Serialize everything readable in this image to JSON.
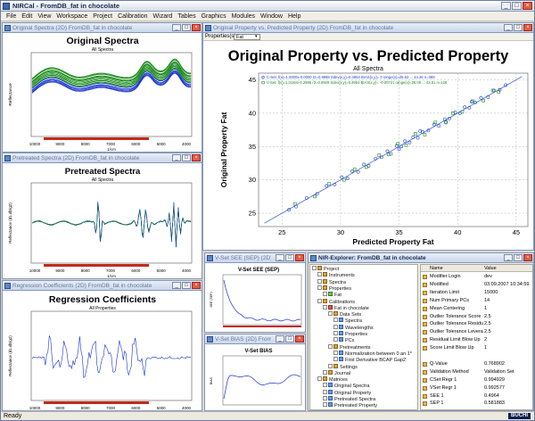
{
  "app": {
    "title": "NIRCal - FromDB_fat in chocolate",
    "status": "Ready",
    "brand": "BÜCHI"
  },
  "window_buttons": {
    "minimize": "_",
    "maximize": "□",
    "close": "×"
  },
  "menu": [
    "File",
    "Edit",
    "View",
    "Workspace",
    "Project",
    "Calibration",
    "Wizard",
    "Tables",
    "Graphics",
    "Modules",
    "Window",
    "Help"
  ],
  "windows": {
    "orig_spectra": {
      "title": "Original Spectra (2D) FromDB_fat in chocolate",
      "chart_title": "Original Spectra",
      "subtitle": "All Spectra",
      "ylabel": "Reflectance",
      "xlabel": "1/cm"
    },
    "pretreated": {
      "title": "Pretreated Spectra (2D) FromDB_fat in chocolate",
      "chart_title": "Pretreated Spectra",
      "subtitle": "All Spectra",
      "ylabel": "Reflectance (d1.db/g2)",
      "xlabel": "1/cm"
    },
    "regression": {
      "title": "Regression Coefficients (2D) FromDB_fat in chocolate",
      "chart_title": "Regression Coefficients",
      "subtitle": "All Properties",
      "ylabel": "Reflectance (d1.db/g2)",
      "xlabel": "1/cm"
    },
    "orig_vs_pred": {
      "title": "Original Property vs. Predicted Property (2D) FromDB_fat in chocolate",
      "toolbar_label": "Properties(s):",
      "toolbar_value": "Fat",
      "chart_title": "Original Property vs. Predicted Property",
      "subtitle": "All Spectra",
      "ylabel": "Original Property Fat",
      "xlabel": "Predicted Property Fat",
      "legend": [
        {
          "name": "C-Set",
          "text": "C-Set: f(x)=1.0000x-0.0000  r2=0.9989  Sdev(x,y)=0.4964  BIAS(x,y)= 0  range(x)=25.53 ... 44.26  n=389",
          "color": "#1c3fd4"
        },
        {
          "name": "V-Set",
          "text": "V-Set: f(x)=1.0184x-0.2986  r2=0.9929  Sdev(x,y)=0.4954  BIAS(x,y)= -0.00721  range(x)=26.09 ... 43.51  n=126",
          "color": "#1a8a1a"
        }
      ]
    },
    "sep": {
      "title": "V-Set SEE (SEP) (2D) Fro...",
      "chart_title": "V-Set SEE (SEP)",
      "ylabel": "SEE (SEP)"
    },
    "bias": {
      "title": "V-Set BIAS (2D) FromDB...",
      "chart_title": "V-Set BIAS",
      "ylabel": "BIAS"
    },
    "explorer": {
      "title": "NIR-Explorer: FromDB_fat in chocolate",
      "tree": [
        {
          "label": "Project",
          "indent": 0,
          "icon": "folder"
        },
        {
          "label": "Instruments",
          "indent": 1,
          "icon": "folder"
        },
        {
          "label": "Spectra",
          "indent": 1,
          "icon": "folder"
        },
        {
          "label": "Properties",
          "indent": 1,
          "icon": "folder"
        },
        {
          "label": "Fat",
          "indent": 2,
          "icon": "green"
        },
        {
          "label": "Calibrations",
          "indent": 1,
          "icon": "folder"
        },
        {
          "label": "Fat in chocolate",
          "indent": 2,
          "icon": "red"
        },
        {
          "label": "Data Sets",
          "indent": 3,
          "icon": "folder"
        },
        {
          "label": "Spectra",
          "indent": 4,
          "icon": "blue"
        },
        {
          "label": "Wavelengths",
          "indent": 4,
          "icon": "blue"
        },
        {
          "label": "Properties",
          "indent": 4,
          "icon": "blue"
        },
        {
          "label": "PCs",
          "indent": 4,
          "icon": "blue"
        },
        {
          "label": "Pretreatments",
          "indent": 3,
          "icon": "folder"
        },
        {
          "label": "Normalization between 0 an 1*",
          "indent": 4,
          "icon": "blue"
        },
        {
          "label": "First Derivative BCAP Gap2",
          "indent": 4,
          "icon": "blue"
        },
        {
          "label": "Settings",
          "indent": 3,
          "icon": "folder"
        },
        {
          "label": "Journal",
          "indent": 2,
          "icon": "folder"
        },
        {
          "label": "Matrices",
          "indent": 1,
          "icon": "folder"
        },
        {
          "label": "Original Spectra",
          "indent": 2,
          "icon": "blue"
        },
        {
          "label": "Original Property",
          "indent": 2,
          "icon": "blue"
        },
        {
          "label": "Pretreated Spectra",
          "indent": 2,
          "icon": "blue"
        },
        {
          "label": "Pretreated Property",
          "indent": 2,
          "icon": "blue"
        }
      ],
      "prop_headers": [
        "Name",
        "Value"
      ],
      "props": [
        [
          "Modifier Login",
          "dev"
        ],
        [
          "Modified",
          "03.09.2007 10:34:59"
        ],
        [
          "Iteration Limit",
          "15000"
        ],
        [
          "Num Primary PCs",
          "14"
        ],
        [
          "Mean Centering",
          "1"
        ],
        [
          "Outlier Tolerance Score",
          "2.5"
        ],
        [
          "Outlier Tolerance Residual",
          "2.5"
        ],
        [
          "Outlier Tolerance Leverage",
          "2.5"
        ],
        [
          "Residual Limit Blow Up",
          "2"
        ],
        [
          "Score Limit Blow Up",
          "1"
        ],
        [
          "",
          ""
        ],
        [
          "Q-Value",
          "0.768902"
        ],
        [
          "Validation Method",
          "Validation Set"
        ],
        [
          "CSet Regr 1",
          "0.994929"
        ],
        [
          "VSet Regr 1",
          "0.992577"
        ],
        [
          "SEE 1",
          "0.4964"
        ],
        [
          "SEP 1",
          "0.581883"
        ]
      ]
    }
  },
  "chart_data": [
    {
      "type": "line",
      "title": "Original Spectra",
      "subtitle": "All Spectra",
      "ylabel": "Reflectance",
      "xlabel": "1/cm",
      "x_ticks": [
        "10000",
        "9000",
        "8000",
        "7000",
        "6000",
        "5000",
        "4000"
      ],
      "xlim": [
        10000,
        4000
      ],
      "ylim": [
        0,
        1.0
      ],
      "series_colors": [
        "#1933cc",
        "#1a8a1a"
      ]
    },
    {
      "type": "line",
      "title": "Pretreated Spectra",
      "subtitle": "All Spectra",
      "ylabel": "Reflectance (d1.db/g2)",
      "xlabel": "1/cm",
      "x_ticks": [
        "10000",
        "9000",
        "8000",
        "7000",
        "6000",
        "5000",
        "4000"
      ],
      "xlim": [
        10000,
        4000
      ]
    },
    {
      "type": "line",
      "title": "Regression Coefficients",
      "subtitle": "All Properties",
      "ylabel": "Reflectance (d1.db/g2)",
      "xlabel": "1/cm",
      "x_ticks": [
        "10000",
        "9000",
        "8000",
        "7000",
        "6000",
        "5000",
        "4000"
      ],
      "xlim": [
        10000,
        4000
      ]
    },
    {
      "type": "scatter",
      "title": "Original Property vs. Predicted Property",
      "subtitle": "All Spectra",
      "xlabel": "Predicted Property Fat",
      "ylabel": "Original Property Fat",
      "xlim": [
        23,
        46
      ],
      "ylim": [
        23,
        46
      ],
      "x_ticks": [
        25,
        30,
        35,
        40,
        45
      ],
      "y_ticks": [
        25,
        30,
        35,
        40,
        45
      ],
      "series": [
        {
          "name": "C-Set",
          "color": "#1c3fd4",
          "points": [
            [
              25.6,
              25.5
            ],
            [
              26.2,
              26.0
            ],
            [
              27.1,
              27.3
            ],
            [
              28.0,
              27.9
            ],
            [
              28.8,
              29.1
            ],
            [
              29.5,
              29.3
            ],
            [
              30.1,
              30.4
            ],
            [
              30.6,
              30.2
            ],
            [
              31.0,
              31.3
            ],
            [
              31.5,
              31.2
            ],
            [
              32.0,
              32.3
            ],
            [
              32.4,
              32.1
            ],
            [
              33.0,
              33.2
            ],
            [
              33.5,
              33.4
            ],
            [
              34.0,
              34.3
            ],
            [
              34.3,
              33.9
            ],
            [
              34.8,
              35.1
            ],
            [
              35.2,
              35.0
            ],
            [
              35.5,
              35.8
            ],
            [
              35.9,
              35.6
            ],
            [
              36.2,
              36.4
            ],
            [
              36.6,
              36.3
            ],
            [
              37.0,
              37.2
            ],
            [
              37.5,
              37.4
            ],
            [
              38.0,
              38.3
            ],
            [
              38.4,
              38.1
            ],
            [
              38.9,
              39.1
            ],
            [
              39.3,
              39.2
            ],
            [
              39.8,
              40.1
            ],
            [
              40.2,
              40.0
            ],
            [
              40.6,
              40.9
            ],
            [
              41.0,
              40.8
            ],
            [
              41.5,
              41.6
            ],
            [
              42.0,
              42.3
            ],
            [
              42.6,
              42.4
            ],
            [
              43.1,
              43.4
            ],
            [
              43.6,
              43.5
            ],
            [
              44.1,
              44.2
            ],
            [
              35.0,
              34.6
            ],
            [
              36.8,
              37.3
            ],
            [
              39.0,
              38.6
            ],
            [
              41.2,
              41.7
            ]
          ]
        },
        {
          "name": "V-Set",
          "color": "#1a8a1a",
          "points": [
            [
              26.1,
              26.4
            ],
            [
              27.8,
              27.5
            ],
            [
              29.0,
              29.4
            ],
            [
              30.3,
              30.0
            ],
            [
              31.2,
              31.6
            ],
            [
              32.2,
              31.9
            ],
            [
              33.3,
              33.7
            ],
            [
              34.1,
              33.8
            ],
            [
              34.9,
              35.4
            ],
            [
              35.6,
              35.2
            ],
            [
              36.4,
              36.9
            ],
            [
              37.2,
              36.8
            ],
            [
              38.1,
              38.6
            ],
            [
              39.0,
              38.7
            ],
            [
              39.6,
              40.0
            ],
            [
              40.4,
              40.2
            ],
            [
              41.3,
              41.8
            ],
            [
              42.2,
              41.9
            ],
            [
              43.0,
              43.4
            ],
            [
              43.5,
              43.2
            ]
          ]
        }
      ],
      "legend": [
        "C-Set: f(x)=1.0000x-0.0000  r2=0.9989  Sdev(x,y)=0.4964  BIAS(x,y)= 0  range(x)=25.53 ... 44.26  n=389",
        "V-Set: f(x)=1.0184x-0.2986  r2=0.9929  Sdev(x,y)=0.4954  BIAS(x,y)= -0.00721  range(x)=26.09 ... 43.51  n=126"
      ]
    },
    {
      "type": "line",
      "title": "V-Set SEE (SEP)",
      "ylabel": "SEE (SEP)"
    },
    {
      "type": "line",
      "title": "V-Set BIAS",
      "ylabel": "BIAS"
    }
  ]
}
